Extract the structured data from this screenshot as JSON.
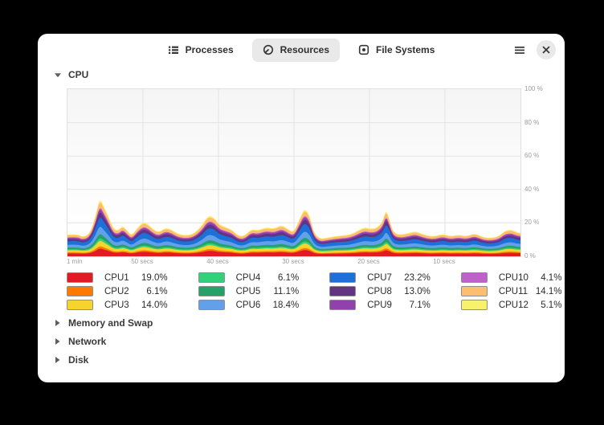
{
  "window": {
    "tabs": [
      {
        "label": "Processes",
        "icon": "list",
        "active": false
      },
      {
        "label": "Resources",
        "icon": "speedometer",
        "active": true
      },
      {
        "label": "File Systems",
        "icon": "disk",
        "active": false
      }
    ],
    "controls": {
      "menu_icon": "hamburger",
      "close_icon": "close"
    }
  },
  "sections": {
    "cpu": {
      "label": "CPU",
      "expanded": true
    },
    "collapsed": [
      {
        "label": "Memory and Swap"
      },
      {
        "label": "Network"
      },
      {
        "label": "Disk"
      }
    ]
  },
  "chart_data": {
    "type": "area",
    "stacked": true,
    "title": "CPU",
    "ylim": [
      0,
      100
    ],
    "y_ticks": [
      "100 %",
      "80 %",
      "60 %",
      "40 %",
      "20 %",
      "0 %"
    ],
    "x_ticks": [
      "1 min",
      "50 secs",
      "40 secs",
      "30 secs",
      "20 secs",
      "10 secs"
    ],
    "grid": true,
    "legend_position": "below",
    "x_percent": [
      0,
      2,
      3.5,
      5,
      6.2,
      7.1,
      8,
      9,
      10.1,
      11.2,
      12.2,
      13.3,
      14.2,
      15.4,
      16.7,
      17.7,
      19,
      20.2,
      21.5,
      22.7,
      24.3,
      26.1,
      27.8,
      29.6,
      31,
      32.3,
      33.5,
      34.9,
      36.3,
      37.6,
      39,
      40.6,
      42,
      43.8,
      45.6,
      47.3,
      48.8,
      50,
      51.2,
      52.3,
      53.4,
      54.4,
      55.7,
      57.1,
      58.9,
      60.6,
      62.4,
      64.2,
      65.6,
      66.8,
      68.3,
      69.6,
      70.3,
      71,
      71.8,
      73,
      74.8,
      76.6,
      77.8,
      79.3,
      81,
      82.8,
      84.6,
      86.3,
      88.1,
      89.9,
      91.7,
      93.4,
      95.2,
      96.6,
      98,
      99.1,
      100
    ],
    "stack_total_percent": [
      13,
      13.5,
      11.5,
      14,
      24,
      35,
      30,
      24,
      16.5,
      15.5,
      18.5,
      15,
      12.5,
      17,
      20.5,
      19.5,
      16,
      14.5,
      17,
      16.5,
      13.5,
      12.5,
      13.5,
      18,
      24.5,
      23.5,
      19,
      17.5,
      16,
      12.5,
      12,
      16.5,
      15.5,
      17.5,
      16.5,
      19,
      16,
      14.5,
      22,
      29,
      25,
      14,
      10.5,
      11,
      12,
      12.5,
      13,
      15.5,
      17.5,
      16.5,
      17,
      21,
      28,
      23,
      15,
      13,
      13.5,
      15,
      14,
      12.5,
      12,
      13.5,
      12,
      13,
      12,
      14,
      11.5,
      11,
      12,
      15.5,
      16,
      14.5,
      14
    ],
    "series": [
      {
        "name": "CPU1",
        "percent": 19.0,
        "display": "19.0%",
        "color": "#e01b24"
      },
      {
        "name": "CPU2",
        "percent": 6.1,
        "display": "6.1%",
        "color": "#ff7800"
      },
      {
        "name": "CPU3",
        "percent": 14.0,
        "display": "14.0%",
        "color": "#f6d32d"
      },
      {
        "name": "CPU4",
        "percent": 6.1,
        "display": "6.1%",
        "color": "#33d17a"
      },
      {
        "name": "CPU5",
        "percent": 11.1,
        "display": "11.1%",
        "color": "#26a269"
      },
      {
        "name": "CPU6",
        "percent": 18.4,
        "display": "18.4%",
        "color": "#62a0ea"
      },
      {
        "name": "CPU7",
        "percent": 23.2,
        "display": "23.2%",
        "color": "#1c71d8"
      },
      {
        "name": "CPU8",
        "percent": 13.0,
        "display": "13.0%",
        "color": "#613583"
      },
      {
        "name": "CPU9",
        "percent": 7.1,
        "display": "7.1%",
        "color": "#9141ac"
      },
      {
        "name": "CPU10",
        "percent": 4.1,
        "display": "4.1%",
        "color": "#c061cb"
      },
      {
        "name": "CPU11",
        "percent": 14.1,
        "display": "14.1%",
        "color": "#ffbe6f"
      },
      {
        "name": "CPU12",
        "percent": 5.1,
        "display": "5.1%",
        "color": "#f9f06b"
      }
    ]
  },
  "colors": {
    "grid_line": "#e3e3e3",
    "tab_active_bg": "#e9e9e9",
    "icon": "#363636"
  }
}
